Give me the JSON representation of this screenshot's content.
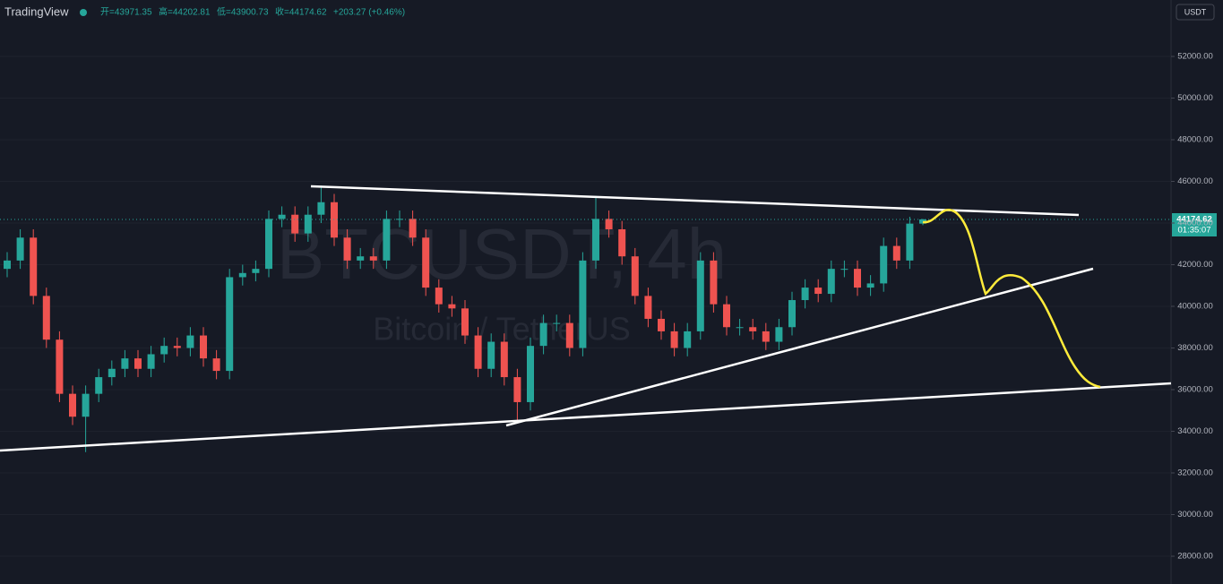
{
  "header": {
    "brand": "TradingView",
    "open": "开=43971.35",
    "high": "高=44202.81",
    "low": "低=43900.73",
    "close": "收=44174.62",
    "change": "+203.27 (+0.46%)"
  },
  "currency": "USDT",
  "last_price_label": "44174.62",
  "countdown": "01:35:07",
  "chart_data": {
    "type": "candlestick",
    "watermark": "BTCUSDT, 4h",
    "watermark_subtitle": "Bitcoin / TetherUS",
    "up_color": "#26a69a",
    "down_color": "#ef5350",
    "ylim": [
      26667,
      54710
    ],
    "yticks": [
      {
        "value": 28000,
        "label": "28000.00"
      },
      {
        "value": 30000,
        "label": "30000.00"
      },
      {
        "value": 32000,
        "label": "32000.00"
      },
      {
        "value": 34000,
        "label": "34000.00"
      },
      {
        "value": 36000,
        "label": "36000.00"
      },
      {
        "value": 38000,
        "label": "38000.00"
      },
      {
        "value": 40000,
        "label": "40000.00"
      },
      {
        "value": 42000,
        "label": "42000.00"
      },
      {
        "value": 44000,
        "label": "44000.00"
      },
      {
        "value": 46000,
        "label": "46000.00"
      },
      {
        "value": 48000,
        "label": "48000.00"
      },
      {
        "value": 50000,
        "label": "50000.00"
      },
      {
        "value": 52000,
        "label": "52000.00"
      }
    ],
    "open": [
      41800,
      42200,
      43300,
      40500,
      38400,
      35800,
      34700,
      35800,
      36600,
      37000,
      37500,
      37000,
      37700,
      38100,
      38000,
      38600,
      37500,
      36900,
      41400,
      41600,
      41800,
      44200,
      44400,
      43500,
      44400,
      45000,
      43300,
      42200,
      42400,
      42200,
      44200,
      44200,
      43300,
      40900,
      40100,
      39900,
      38600,
      37000,
      38300,
      36600,
      35400,
      38100,
      39200,
      39200,
      38000,
      42200,
      44200,
      43700,
      42400,
      40500,
      39400,
      38800,
      38000,
      38800,
      42200,
      40100,
      39000,
      39000,
      38800,
      38300,
      39000,
      40300,
      40900,
      40600,
      41800,
      41800,
      40900,
      41100,
      42900,
      42200,
      43971.35
    ],
    "high": [
      42600,
      43700,
      43700,
      40900,
      38800,
      36200,
      36200,
      37000,
      37400,
      37900,
      37900,
      38100,
      38500,
      38500,
      39000,
      39000,
      37900,
      41800,
      42000,
      42200,
      44600,
      44800,
      44800,
      44800,
      45800,
      45400,
      43700,
      42800,
      42800,
      44600,
      44600,
      44600,
      43700,
      41300,
      40500,
      40300,
      39000,
      38700,
      38700,
      37000,
      38500,
      39600,
      39600,
      39600,
      42600,
      45300,
      44600,
      44100,
      42800,
      40900,
      39800,
      39200,
      39200,
      42600,
      42600,
      40500,
      39400,
      39400,
      39200,
      39400,
      40700,
      41300,
      41300,
      42200,
      42200,
      42200,
      41500,
      43300,
      43300,
      44300,
      44202.81
    ],
    "low": [
      41400,
      41800,
      40100,
      38000,
      35400,
      34300,
      33000,
      35400,
      36200,
      36600,
      36600,
      36600,
      37300,
      37600,
      37600,
      37100,
      36500,
      36500,
      41000,
      41200,
      41400,
      43800,
      43100,
      43100,
      44000,
      42900,
      41800,
      41800,
      41800,
      41800,
      43800,
      42900,
      40500,
      39700,
      39500,
      38200,
      36600,
      36600,
      36200,
      34400,
      35000,
      37700,
      38800,
      37600,
      37600,
      41800,
      43300,
      42000,
      40100,
      39000,
      38400,
      37600,
      37600,
      38400,
      39700,
      38600,
      38600,
      38400,
      37900,
      37900,
      38600,
      39900,
      40200,
      40200,
      41400,
      40500,
      40500,
      40700,
      41800,
      41800,
      43900.73
    ],
    "close": [
      42200,
      43300,
      40500,
      38400,
      35800,
      34700,
      35800,
      36600,
      37000,
      37500,
      37000,
      37700,
      38100,
      38000,
      38600,
      37500,
      36900,
      41400,
      41600,
      41800,
      44200,
      44400,
      43500,
      44400,
      45000,
      43300,
      42200,
      42400,
      42200,
      44200,
      44200,
      43300,
      40900,
      40100,
      39900,
      38600,
      37000,
      38300,
      36600,
      35400,
      38100,
      39200,
      39200,
      38000,
      42200,
      44200,
      43700,
      42400,
      40500,
      39400,
      38800,
      38000,
      38800,
      42200,
      40100,
      39000,
      39000,
      38800,
      38300,
      39000,
      40300,
      40900,
      40600,
      41800,
      41800,
      40900,
      41100,
      42900,
      42200,
      43971.35,
      44174.62
    ]
  }
}
